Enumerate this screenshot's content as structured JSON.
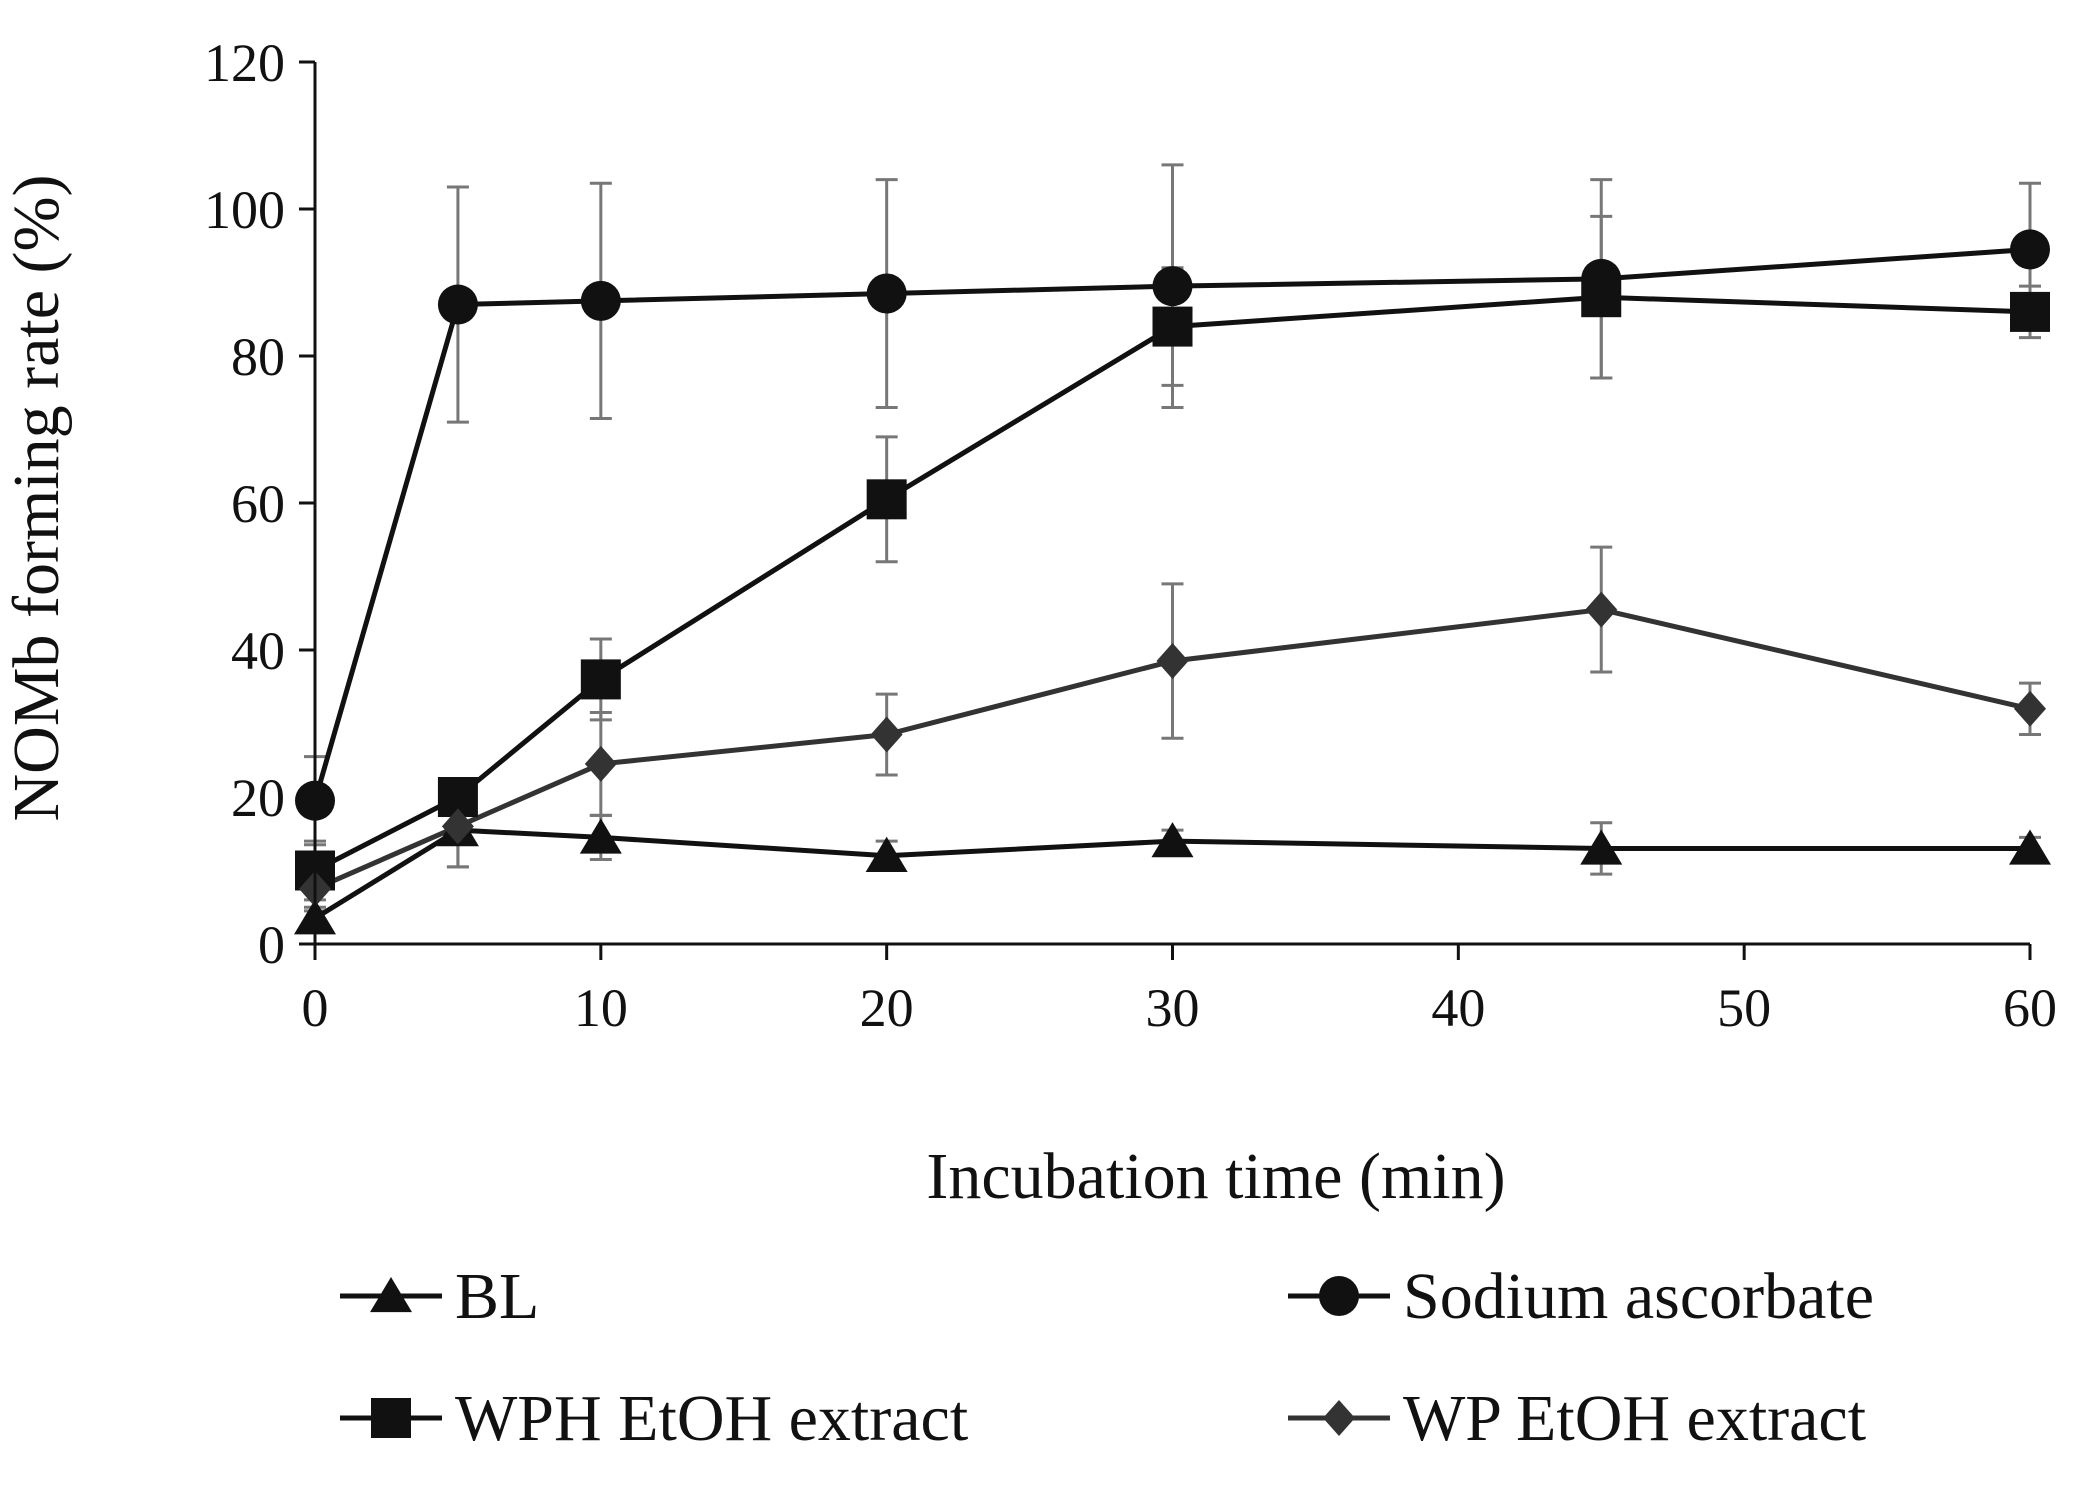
{
  "chart_data": {
    "type": "line",
    "title": "",
    "xlabel": "Incubation time (min)",
    "ylabel": "NOMb forming rate (%)",
    "xlim": [
      0,
      60
    ],
    "ylim": [
      0,
      120
    ],
    "xticks": [
      "0",
      "10",
      "20",
      "30",
      "40",
      "50",
      "60"
    ],
    "yticks": [
      "0",
      "20",
      "40",
      "60",
      "80",
      "100",
      "120"
    ],
    "grid": false,
    "legend_position": "bottom",
    "x": [
      0,
      5,
      10,
      20,
      30,
      45,
      60
    ],
    "series": [
      {
        "name": "BL",
        "marker": "triangle",
        "values": [
          3.5,
          15.5,
          14.5,
          12,
          14,
          13,
          13
        ],
        "errors": [
          1.5,
          5,
          3,
          2,
          1.5,
          3.5,
          1.5
        ]
      },
      {
        "name": "Sodium ascorbate",
        "marker": "circle",
        "values": [
          19.5,
          87,
          87.5,
          88.5,
          89.5,
          90.5,
          94.5
        ],
        "errors": [
          6,
          16,
          16,
          15.5,
          16.5,
          13.5,
          9
        ]
      },
      {
        "name": "WPH EtOH extract",
        "marker": "square",
        "values": [
          10,
          20,
          36,
          60.5,
          84,
          88,
          86
        ],
        "errors": [
          4,
          2.5,
          5.5,
          8.5,
          8,
          11,
          3.5
        ]
      },
      {
        "name": "WP EtOH extract",
        "marker": "diamond",
        "values": [
          7.5,
          16,
          24.5,
          28.5,
          38.5,
          45.5,
          32
        ],
        "errors": [
          3,
          5.5,
          7,
          5.5,
          10.5,
          8.5,
          3.5
        ]
      }
    ],
    "colors": {
      "line": "#111111",
      "diamond_line": "#333333",
      "error_bar": "#777777",
      "axis": "#111111"
    }
  }
}
